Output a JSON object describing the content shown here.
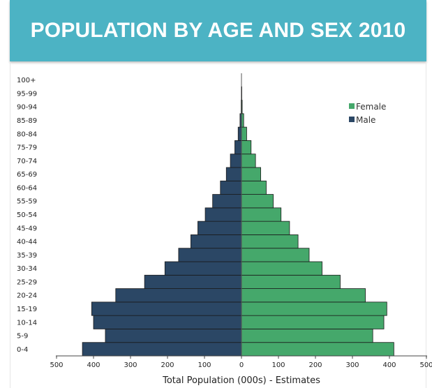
{
  "header": {
    "title": "POPULATION BY AGE AND SEX 2010"
  },
  "chart_data": {
    "type": "bar",
    "orientation": "horizontal-pyramid",
    "categories": [
      "0-4",
      "5-9",
      "10-14",
      "15-19",
      "20-24",
      "25-29",
      "30-34",
      "35-39",
      "40-44",
      "45-49",
      "50-54",
      "55-59",
      "60-64",
      "65-69",
      "70-74",
      "75-79",
      "80-84",
      "85-89",
      "90-94",
      "95-99",
      "100+"
    ],
    "series": [
      {
        "name": "Female",
        "color": "#45a86b",
        "values": [
          412,
          355,
          385,
          393,
          335,
          267,
          218,
          183,
          153,
          130,
          107,
          86,
          67,
          52,
          38,
          26,
          14,
          6,
          2,
          1,
          0
        ]
      },
      {
        "name": "Male",
        "color": "#2b4765",
        "values": [
          430,
          368,
          400,
          405,
          340,
          262,
          207,
          170,
          137,
          118,
          98,
          78,
          57,
          41,
          30,
          18,
          9,
          4,
          1,
          0.5,
          0
        ]
      }
    ],
    "x_ticks": [
      "500",
      "400",
      "300",
      "200",
      "100",
      "0",
      "100",
      "200",
      "300",
      "400",
      "500"
    ],
    "xlim": [
      -500,
      500
    ],
    "xlabel": "Total Population (000s) - Estimates",
    "legend_position": "top-right",
    "grid": false
  }
}
